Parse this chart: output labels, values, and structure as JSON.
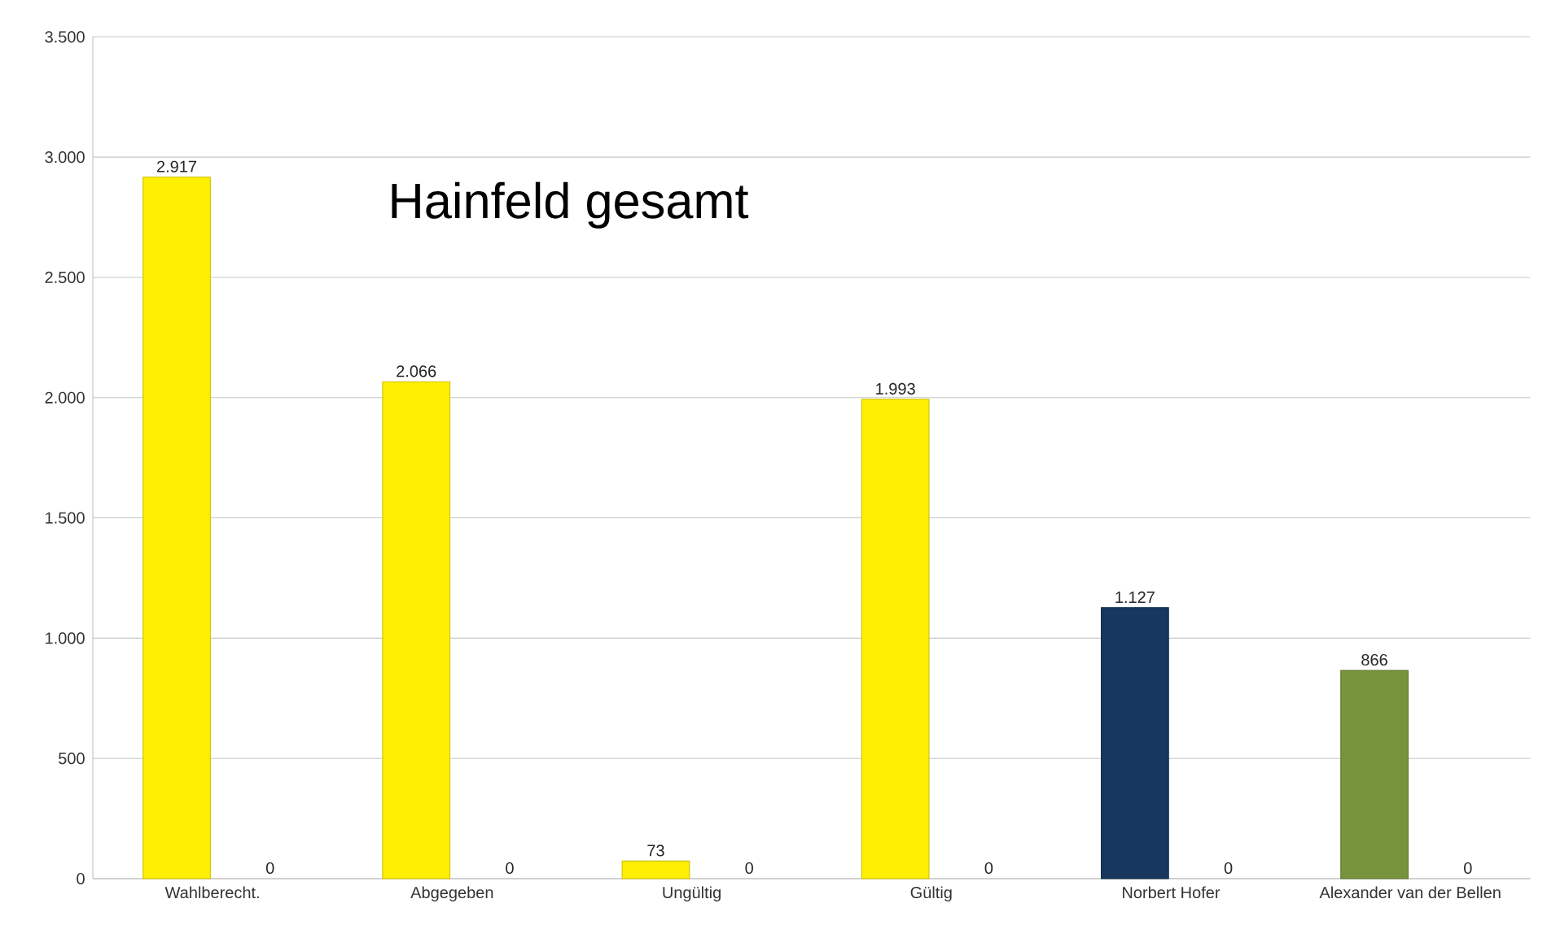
{
  "chart_data": {
    "type": "bar",
    "title": "Hainfeld gesamt",
    "categories": [
      "Wahlberecht.",
      "Abgegeben",
      "Ungültig",
      "Gültig",
      "Norbert Hofer",
      "Alexander van der Bellen"
    ],
    "series": [
      {
        "colors": [
          "#ffef00",
          "#ffef00",
          "#ffef00",
          "#ffef00",
          "#17375e",
          "#77933c"
        ],
        "values": [
          2917,
          2066,
          73,
          1993,
          1127,
          866
        ],
        "value_labels": [
          "2.917",
          "2.066",
          "73",
          "1.993",
          "1.127",
          "866"
        ]
      }
    ],
    "annotations": [
      "0",
      "0",
      "0",
      "0",
      "0",
      "0"
    ],
    "ylim": [
      0,
      3500
    ],
    "yticks": [
      0,
      500,
      {
        "value": 1000,
        "label": "1.000"
      },
      {
        "value": 1500,
        "label": "1.500"
      },
      {
        "value": 2000,
        "label": "2.000"
      },
      {
        "value": 2500,
        "label": "2.500"
      },
      {
        "value": 3000,
        "label": "3.000"
      },
      {
        "value": 3500,
        "label": "3.500"
      }
    ],
    "grid": "y"
  }
}
